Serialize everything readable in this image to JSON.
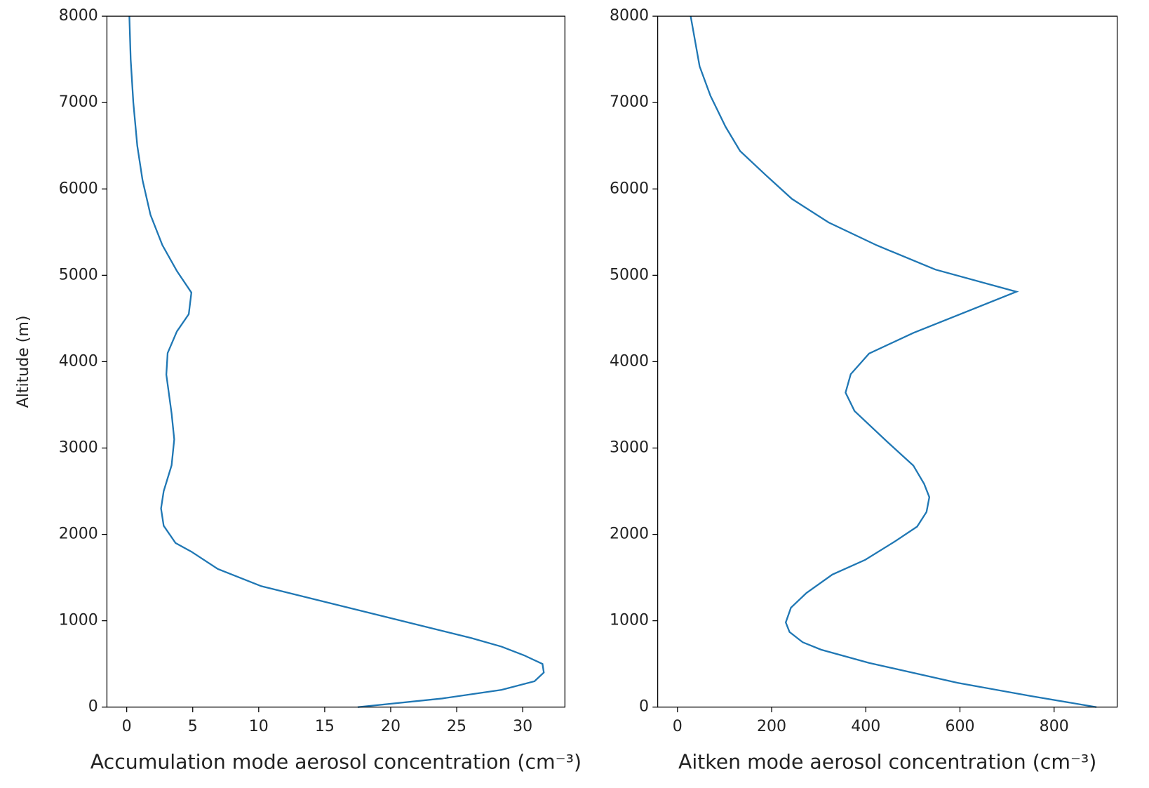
{
  "chart_data": [
    {
      "type": "line",
      "xlabel": "Accumulation mode aerosol concentration (cm⁻³)",
      "ylabel": "Altitude (m)",
      "color": "#1f77b4",
      "x": [
        17.5,
        23.9,
        28.4,
        30.9,
        31.6,
        31.5,
        30.1,
        28.4,
        26.1,
        20.8,
        15.5,
        10.2,
        6.9,
        4.9,
        3.7,
        2.8,
        2.6,
        2.8,
        3.4,
        3.6,
        3.4,
        3.0,
        3.1,
        3.8,
        4.7,
        4.9,
        3.8,
        2.7,
        1.8,
        1.2,
        0.8,
        0.5,
        0.3,
        0.2
      ],
      "values": [
        0,
        100,
        200,
        300,
        400,
        500,
        600,
        700,
        800,
        1000,
        1200,
        1400,
        1600,
        1800,
        1900,
        2100,
        2300,
        2500,
        2800,
        3100,
        3400,
        3850,
        4100,
        4350,
        4550,
        4800,
        5050,
        5350,
        5700,
        6100,
        6500,
        7000,
        7500,
        8000
      ],
      "xlim": [
        -1.5,
        33.2
      ],
      "xticks": [
        0,
        5,
        10,
        15,
        20,
        25,
        30
      ],
      "ylim": [
        0,
        8000
      ],
      "yticks": [
        0,
        1000,
        2000,
        3000,
        4000,
        5000,
        6000,
        7000,
        8000
      ]
    },
    {
      "type": "line",
      "xlabel": "Aitken mode aerosol concentration (cm⁻³)",
      "color": "#1f77b4",
      "x": [
        890,
        751,
        595,
        407,
        305,
        266,
        238,
        230,
        241,
        274,
        329,
        399,
        462,
        509,
        529,
        535,
        524,
        501,
        446,
        376,
        357,
        368,
        407,
        501,
        720,
        548,
        423,
        321,
        243,
        188,
        133,
        102,
        70,
        47,
        28
      ],
      "values": [
        0,
        128,
        281,
        512,
        665,
        751,
        870,
        981,
        1151,
        1322,
        1535,
        1706,
        1919,
        2090,
        2260,
        2431,
        2584,
        2797,
        3070,
        3429,
        3642,
        3855,
        4094,
        4333,
        4810,
        5066,
        5348,
        5612,
        5885,
        6158,
        6439,
        6721,
        7079,
        7420,
        8000
      ],
      "xlim": [
        -42,
        934
      ],
      "xticks": [
        0,
        200,
        400,
        600,
        800
      ],
      "ylim": [
        0,
        8000
      ],
      "yticks": [
        0,
        1000,
        2000,
        3000,
        4000,
        5000,
        6000,
        7000,
        8000
      ]
    }
  ]
}
